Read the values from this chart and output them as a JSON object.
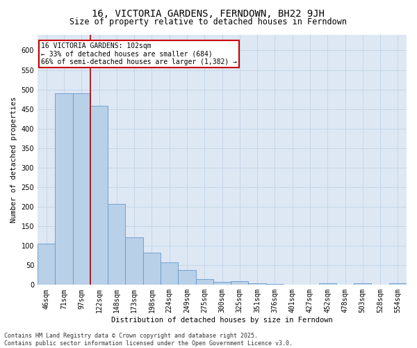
{
  "title": "16, VICTORIA GARDENS, FERNDOWN, BH22 9JH",
  "subtitle": "Size of property relative to detached houses in Ferndown",
  "xlabel": "Distribution of detached houses by size in Ferndown",
  "ylabel": "Number of detached properties",
  "footer_line1": "Contains HM Land Registry data © Crown copyright and database right 2025.",
  "footer_line2": "Contains public sector information licensed under the Open Government Licence v3.0.",
  "categories": [
    "46sqm",
    "71sqm",
    "97sqm",
    "122sqm",
    "148sqm",
    "173sqm",
    "198sqm",
    "224sqm",
    "249sqm",
    "275sqm",
    "300sqm",
    "325sqm",
    "351sqm",
    "376sqm",
    "401sqm",
    "427sqm",
    "452sqm",
    "478sqm",
    "503sqm",
    "528sqm",
    "554sqm"
  ],
  "values": [
    105,
    490,
    490,
    458,
    207,
    122,
    82,
    57,
    38,
    14,
    8,
    10,
    5,
    2,
    0,
    0,
    5,
    0,
    5,
    0,
    5
  ],
  "bar_color": "#b8d0e8",
  "bar_edgecolor": "#6699cc",
  "grid_color": "#c5d5e8",
  "background_color": "#dde8f4",
  "vline_x": 2.5,
  "vline_color": "#aa0000",
  "annotation_text": "16 VICTORIA GARDENS: 102sqm\n← 33% of detached houses are smaller (684)\n66% of semi-detached houses are larger (1,382) →",
  "annotation_box_color": "#ffffff",
  "annotation_box_edgecolor": "#cc0000",
  "ylim": [
    0,
    640
  ],
  "yticks": [
    0,
    50,
    100,
    150,
    200,
    250,
    300,
    350,
    400,
    450,
    500,
    550,
    600
  ],
  "title_fontsize": 10,
  "subtitle_fontsize": 8.5,
  "axis_fontsize": 7.5,
  "tick_fontsize": 7,
  "footer_fontsize": 6,
  "annot_fontsize": 7
}
